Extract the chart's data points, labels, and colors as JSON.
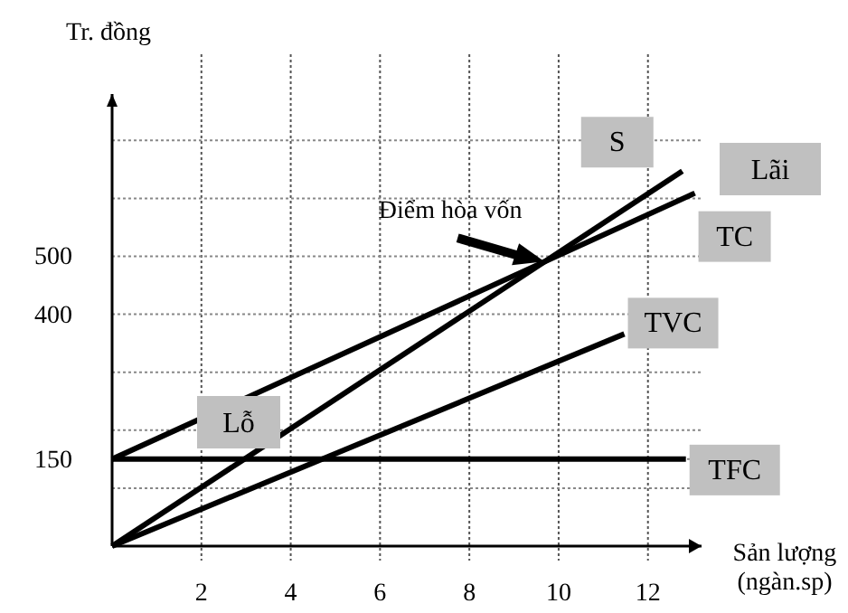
{
  "chart_data": {
    "type": "line",
    "ylabel": "Tr. đồng",
    "xlabel": "Sản lượng\n(ngàn.sp)",
    "xlim": [
      0,
      13.2
    ],
    "ylim": [
      0,
      780
    ],
    "xticks": [
      2,
      4,
      6,
      8,
      10,
      12
    ],
    "yticks": [
      {
        "value": 100,
        "label": null
      },
      150,
      {
        "value": 200,
        "label": null
      },
      {
        "value": 300,
        "label": null
      },
      400,
      500,
      {
        "value": 600,
        "label": null
      },
      {
        "value": 700,
        "label": null
      }
    ],
    "grid": true,
    "legend": false,
    "marker": "none",
    "line_style": "solid",
    "series": [
      {
        "name": "S",
        "color": "#000000",
        "x": [
          0,
          12.77
        ],
        "values": [
          0,
          647
        ]
      },
      {
        "name": "TC",
        "color": "#000000",
        "x": [
          0,
          13.05
        ],
        "values": [
          150,
          609
        ]
      },
      {
        "name": "TVC",
        "color": "#000000",
        "x": [
          0,
          11.47
        ],
        "values": [
          0,
          366
        ]
      },
      {
        "name": "TFC",
        "color": "#000000",
        "x": [
          0,
          12.85
        ],
        "values": [
          150,
          150
        ]
      }
    ],
    "annotations": [
      {
        "text": "Điểm hòa vốn",
        "x": 9.68,
        "y": 491
      },
      "Lãi",
      "Lỗ"
    ]
  }
}
